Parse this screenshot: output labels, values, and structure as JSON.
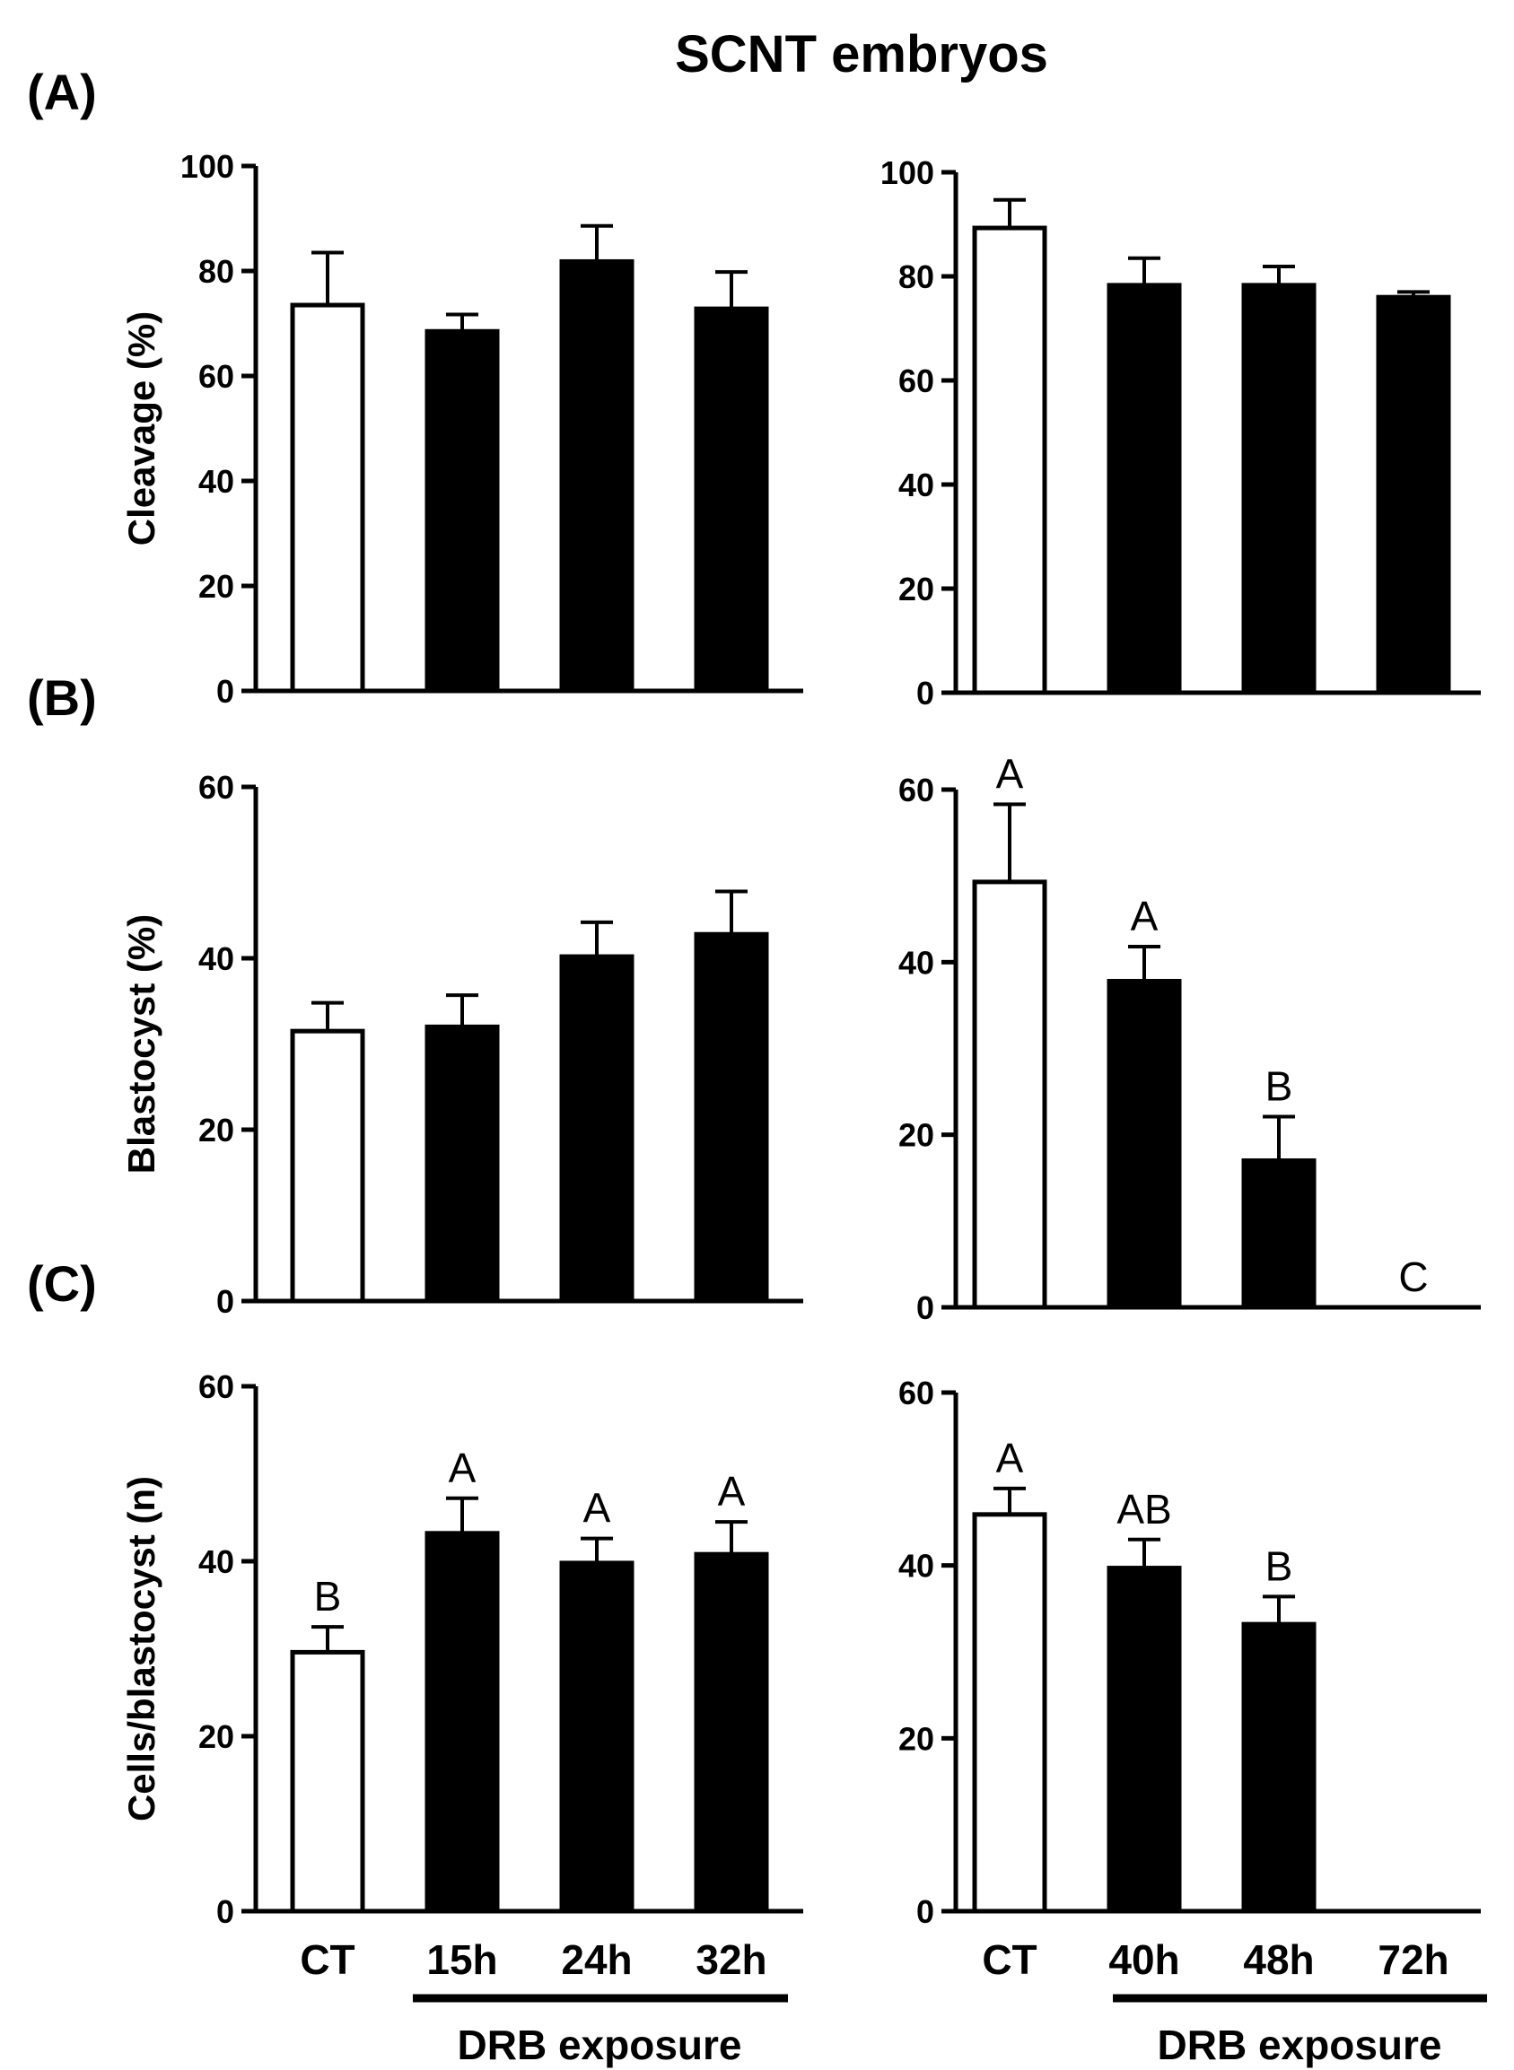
{
  "title": "SCNT embryos",
  "group_label": "DRB exposure",
  "panel_labels": [
    "(A)",
    "(B)",
    "(C)"
  ],
  "colors": {
    "control": "#ffffff",
    "treated": "#000000",
    "stroke": "#000000"
  },
  "chart_data": [
    {
      "id": "A-left",
      "type": "bar",
      "panel": "(A)",
      "ylabel": "Cleavage (%)",
      "ylim": [
        0,
        100
      ],
      "yticks": [
        0,
        20,
        40,
        60,
        80,
        100
      ],
      "categories": [
        "CT",
        "15h",
        "24h",
        "32h"
      ],
      "values": [
        73.5,
        68.5,
        81.8,
        72.8
      ],
      "errors": [
        10,
        3.2,
        6.8,
        7
      ],
      "labels": [
        "",
        "",
        "",
        ""
      ],
      "show_categories": false
    },
    {
      "id": "A-right",
      "type": "bar",
      "panel": "(A)",
      "ylabel": "",
      "ylim": [
        0,
        100
      ],
      "yticks": [
        0,
        20,
        40,
        60,
        80,
        100
      ],
      "categories": [
        "CT",
        "40h",
        "48h",
        "72h"
      ],
      "values": [
        89.3,
        78.3,
        78.3,
        76
      ],
      "errors": [
        5.4,
        5.2,
        3.6,
        1
      ],
      "labels": [
        "",
        "",
        "",
        ""
      ],
      "show_categories": false
    },
    {
      "id": "B-left",
      "type": "bar",
      "panel": "(B)",
      "ylabel": "Blastocyst (%)",
      "ylim": [
        0,
        60
      ],
      "yticks": [
        0,
        20,
        40,
        60
      ],
      "categories": [
        "CT",
        "15h",
        "24h",
        "32h"
      ],
      "values": [
        31.5,
        32,
        40.2,
        42.8
      ],
      "errors": [
        3.3,
        3.7,
        4,
        5
      ],
      "labels": [
        "",
        "",
        "",
        ""
      ],
      "show_categories": false
    },
    {
      "id": "B-right",
      "type": "bar",
      "panel": "(B)",
      "ylabel": "",
      "ylim": [
        0,
        60
      ],
      "yticks": [
        0,
        20,
        40,
        60
      ],
      "categories": [
        "CT",
        "40h",
        "48h",
        "72h"
      ],
      "values": [
        49.3,
        37.8,
        17,
        0
      ],
      "errors": [
        9,
        4,
        5.1,
        0
      ],
      "labels": [
        "A",
        "A",
        "B",
        "C"
      ],
      "show_categories": false
    },
    {
      "id": "C-left",
      "type": "bar",
      "panel": "(C)",
      "ylabel": "Cells/blastocyst (n)",
      "ylim": [
        0,
        60
      ],
      "yticks": [
        0,
        20,
        40,
        60
      ],
      "categories": [
        "CT",
        "15h",
        "24h",
        "32h"
      ],
      "values": [
        29.6,
        43.2,
        39.8,
        40.8
      ],
      "errors": [
        2.9,
        4,
        2.8,
        3.7
      ],
      "labels": [
        "B",
        "A",
        "A",
        "A"
      ],
      "show_categories": true
    },
    {
      "id": "C-right",
      "type": "bar",
      "panel": "(C)",
      "ylabel": "",
      "ylim": [
        0,
        60
      ],
      "yticks": [
        0,
        20,
        40,
        60
      ],
      "categories": [
        "CT",
        "40h",
        "48h",
        "72h"
      ],
      "values": [
        45.9,
        39.7,
        33.2,
        0
      ],
      "errors": [
        3,
        3.3,
        3.2,
        0
      ],
      "labels": [
        "A",
        "AB",
        "B",
        ""
      ],
      "show_categories": true
    }
  ]
}
